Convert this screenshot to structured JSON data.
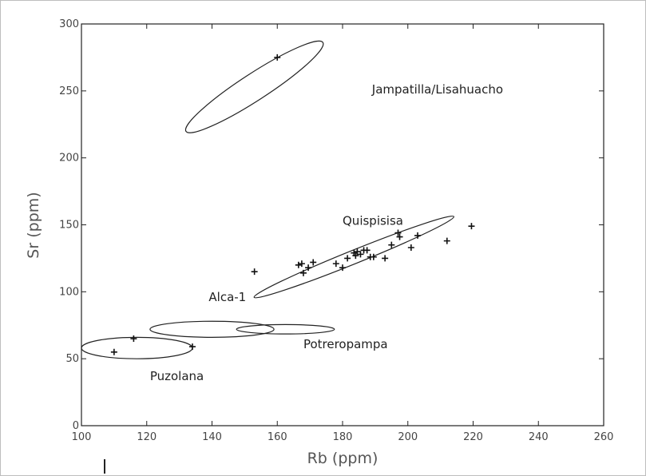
{
  "chart_data": {
    "type": "scatter",
    "xlabel": "Rb (ppm)",
    "ylabel": "Sr (ppm)",
    "xlim": [
      100,
      260
    ],
    "ylim": [
      0,
      300
    ],
    "x_ticks": [
      "100",
      "120",
      "140",
      "160",
      "180",
      "200",
      "220",
      "240",
      "260"
    ],
    "y_ticks": [
      "0",
      "50",
      "100",
      "150",
      "200",
      "250",
      "300"
    ],
    "grid": false,
    "points": [
      {
        "x": 110,
        "y": 55
      },
      {
        "x": 116,
        "y": 65
      },
      {
        "x": 134,
        "y": 59
      },
      {
        "x": 153,
        "y": 115
      },
      {
        "x": 160,
        "y": 275
      },
      {
        "x": 166.5,
        "y": 120
      },
      {
        "x": 167.5,
        "y": 121
      },
      {
        "x": 168,
        "y": 114
      },
      {
        "x": 169.5,
        "y": 118
      },
      {
        "x": 171,
        "y": 122
      },
      {
        "x": 178,
        "y": 121
      },
      {
        "x": 180,
        "y": 118
      },
      {
        "x": 181.5,
        "y": 125
      },
      {
        "x": 183.5,
        "y": 129
      },
      {
        "x": 184,
        "y": 127
      },
      {
        "x": 184.5,
        "y": 130
      },
      {
        "x": 185.5,
        "y": 128
      },
      {
        "x": 186.5,
        "y": 131
      },
      {
        "x": 187.5,
        "y": 131
      },
      {
        "x": 188.5,
        "y": 126
      },
      {
        "x": 189.5,
        "y": 126
      },
      {
        "x": 193,
        "y": 125
      },
      {
        "x": 195,
        "y": 135
      },
      {
        "x": 197,
        "y": 144
      },
      {
        "x": 197.5,
        "y": 141
      },
      {
        "x": 201,
        "y": 133
      },
      {
        "x": 203,
        "y": 142
      },
      {
        "x": 212,
        "y": 138
      },
      {
        "x": 219.5,
        "y": 149
      }
    ],
    "groups": [
      {
        "label": "Jampatilla/Lisahuacho",
        "cx": 153,
        "cy": 253,
        "rx": 25,
        "ry": 10,
        "angle": 33,
        "label_x": 189,
        "label_y": 248
      },
      {
        "label": "Quispisisa",
        "cx": 183.5,
        "cy": 126,
        "rx": 33,
        "ry": 5,
        "angle": 22,
        "label_x": 180,
        "label_y": 150
      },
      {
        "label": "Alca-1",
        "cx": 140,
        "cy": 72,
        "rx": 19,
        "ry": 6,
        "angle": 0,
        "label_x": 139,
        "label_y": 93
      },
      {
        "label": "Potreropampa",
        "cx": 162.5,
        "cy": 72,
        "rx": 15,
        "ry": 3.5,
        "angle": 0,
        "label_x": 168,
        "label_y": 58
      },
      {
        "label": "Puzolana",
        "cx": 117,
        "cy": 58,
        "rx": 17,
        "ry": 8,
        "angle": 0,
        "label_x": 121,
        "label_y": 34
      }
    ]
  }
}
